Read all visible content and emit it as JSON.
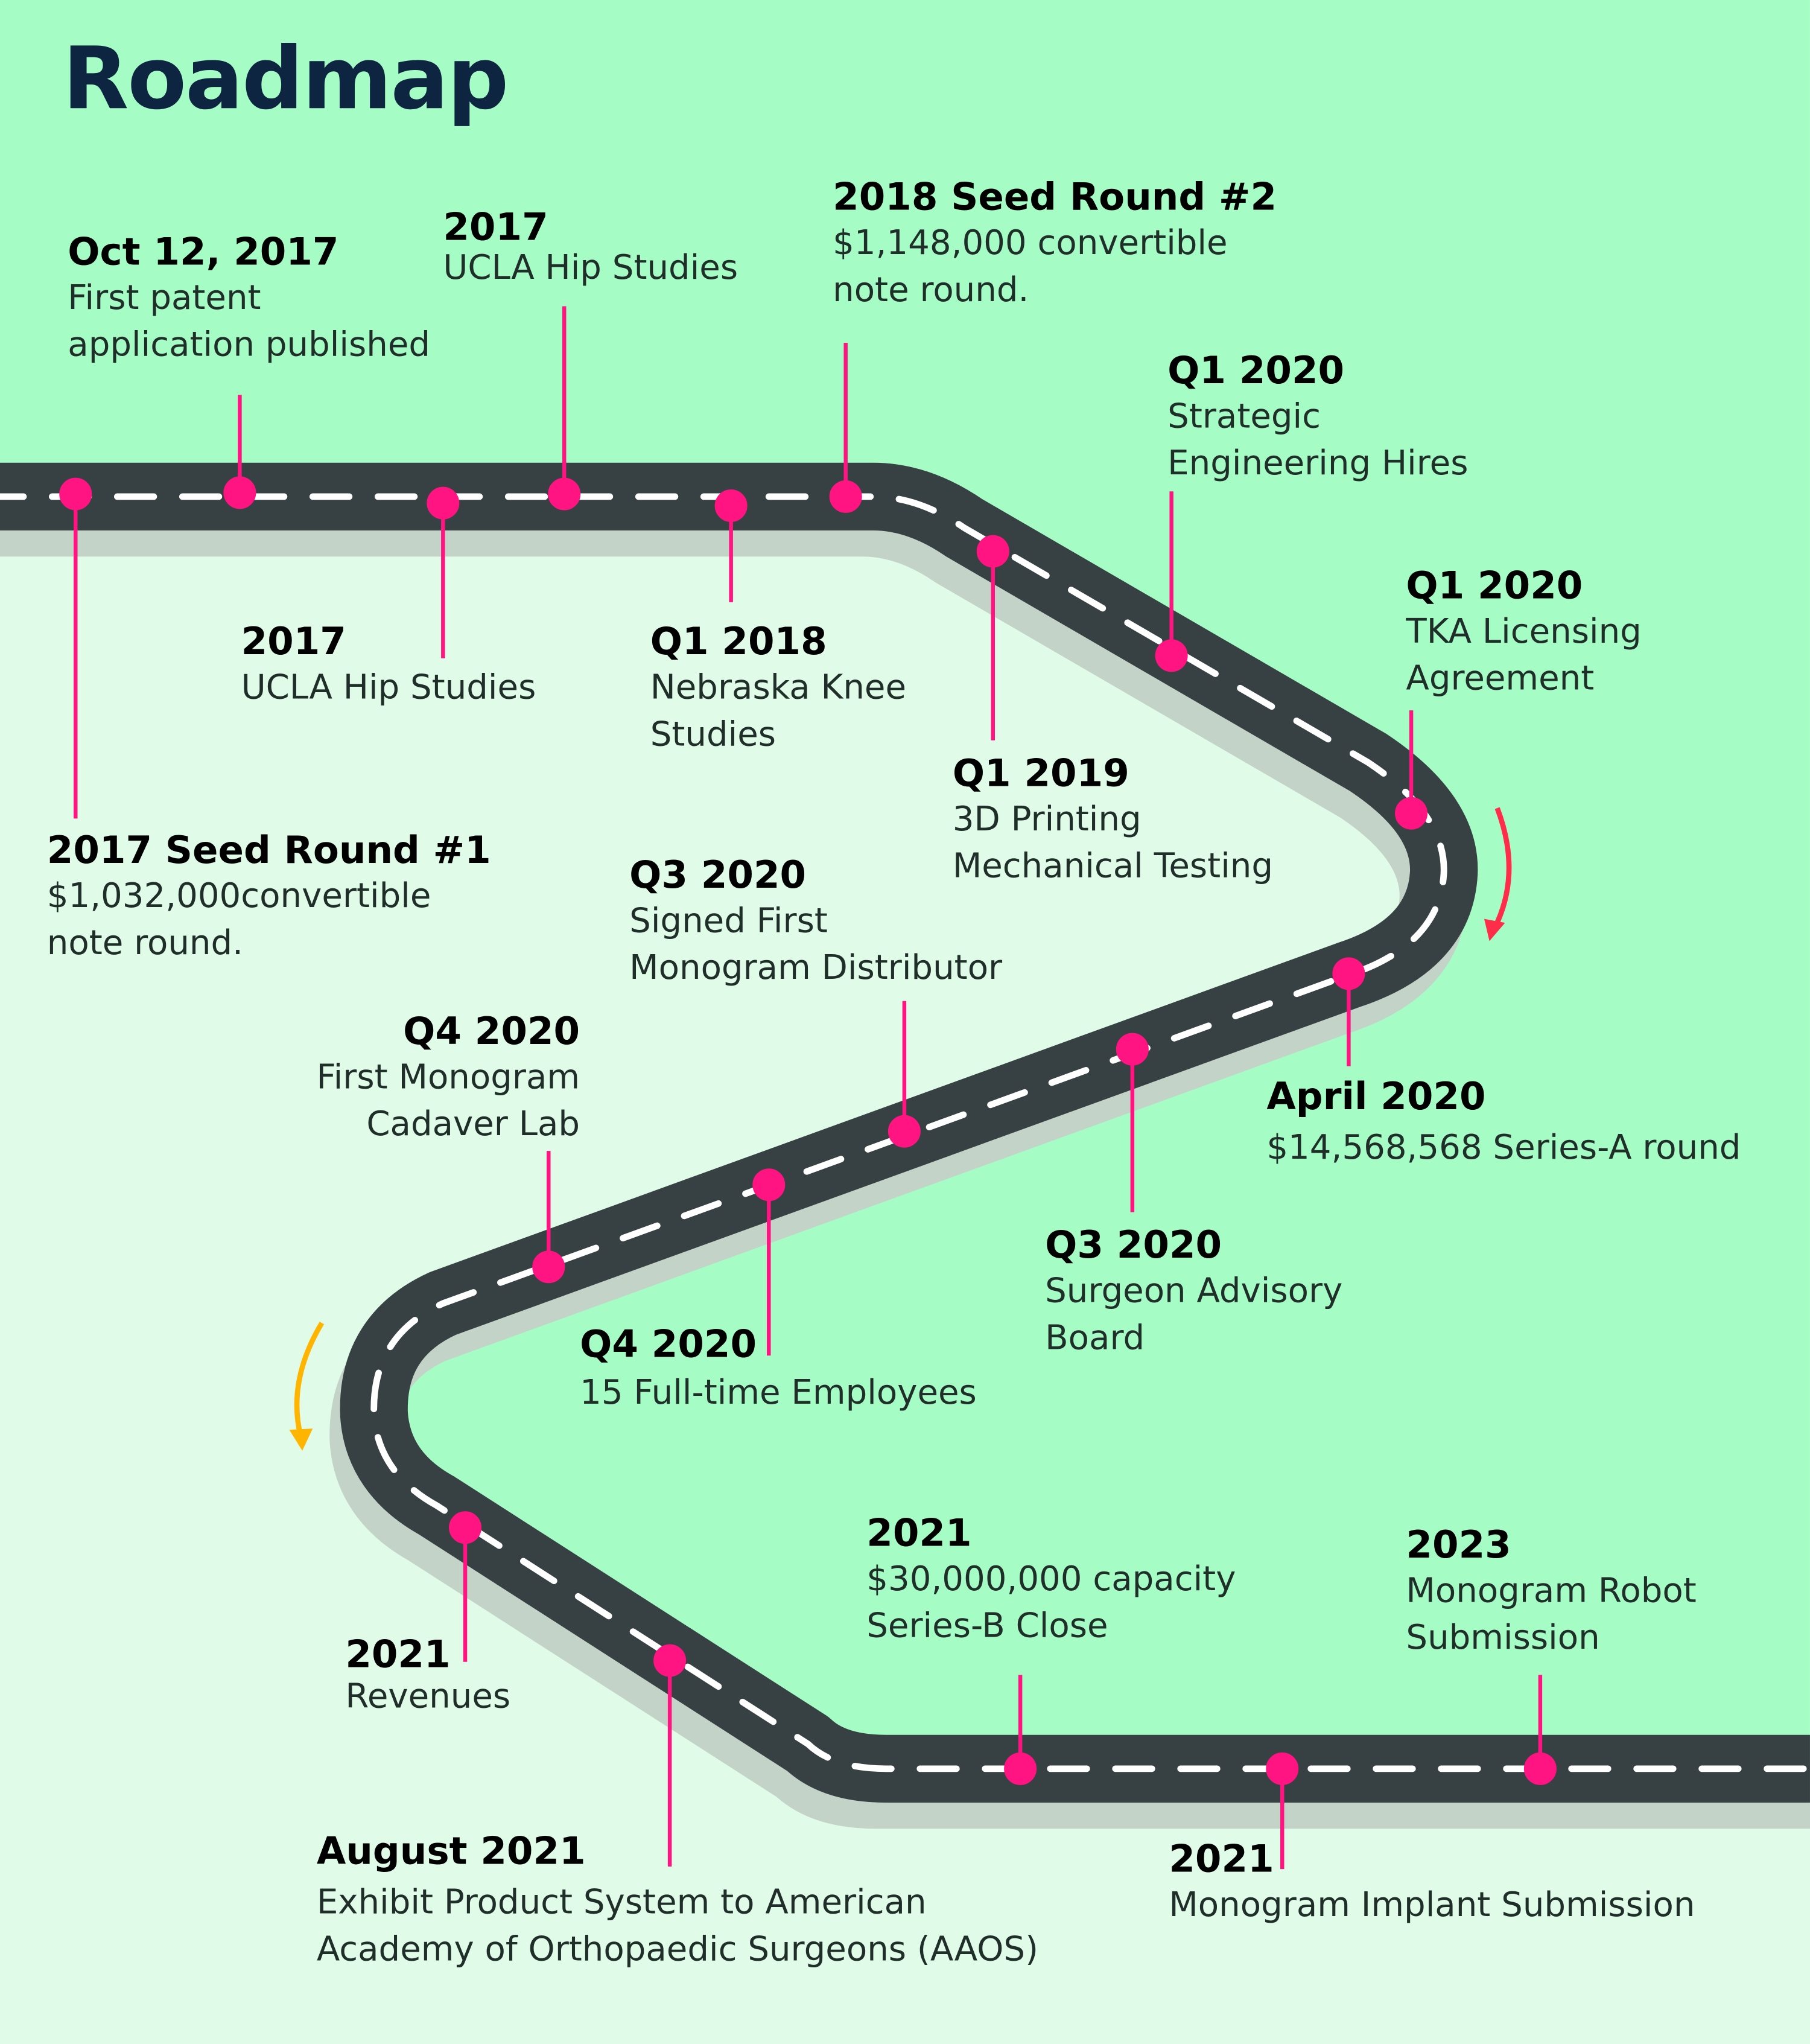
{
  "title": "Roadmap",
  "colors": {
    "background_outer": "#a5fdc5",
    "background_inner": "#e0fbe8",
    "road": "#374043",
    "road_shadow": "#c3d3c8",
    "lane_marks": "#ffffff",
    "pin": "#ff1481",
    "arrow_right": "#ff2d4a",
    "arrow_left": "#ffb400",
    "title": "#0d2540"
  },
  "milestones": [
    {
      "heading": "Oct 12, 2017",
      "lines": [
        "First patent",
        "application published"
      ]
    },
    {
      "heading": "2017",
      "lines": [
        "UCLA Hip Studies"
      ]
    },
    {
      "heading": "2018 Seed Round #2",
      "lines": [
        "$1,148,000 convertible",
        "note round."
      ]
    },
    {
      "heading": "Q1 2020",
      "lines": [
        "Strategic",
        "Engineering Hires"
      ]
    },
    {
      "heading": "Q1 2020",
      "lines": [
        "TKA Licensing",
        "Agreement"
      ]
    },
    {
      "heading": "2017",
      "lines": [
        "UCLA Hip Studies"
      ]
    },
    {
      "heading": "Q1 2018",
      "lines": [
        "Nebraska Knee",
        "Studies"
      ]
    },
    {
      "heading": "Q1 2019",
      "lines": [
        "3D Printing",
        "Mechanical Testing"
      ]
    },
    {
      "heading": "2017 Seed Round #1",
      "lines": [
        "$1,032,000convertible",
        "note round."
      ]
    },
    {
      "heading": "Q3 2020",
      "lines": [
        "Signed First",
        "Monogram Distributor"
      ]
    },
    {
      "heading": "Q4 2020",
      "lines": [
        "First Monogram",
        "Cadaver Lab"
      ]
    },
    {
      "heading": "April 2020",
      "lines": [
        "$14,568,568 Series-A round"
      ]
    },
    {
      "heading": "Q3 2020",
      "lines": [
        "Surgeon Advisory",
        "Board"
      ]
    },
    {
      "heading": "Q4 2020",
      "lines": [
        "15 Full-time Employees"
      ]
    },
    {
      "heading": "2021",
      "lines": [
        "$30,000,000 capacity",
        "Series-B Close"
      ]
    },
    {
      "heading": "2023",
      "lines": [
        "Monogram Robot",
        "Submission"
      ]
    },
    {
      "heading": "2021",
      "lines": [
        "Revenues"
      ]
    },
    {
      "heading": "August 2021",
      "lines": [
        "Exhibit Product System to American",
        "Academy of Orthopaedic Surgeons (AAOS)"
      ]
    },
    {
      "heading": "2021",
      "lines": [
        "Monogram Implant Submission"
      ]
    }
  ]
}
